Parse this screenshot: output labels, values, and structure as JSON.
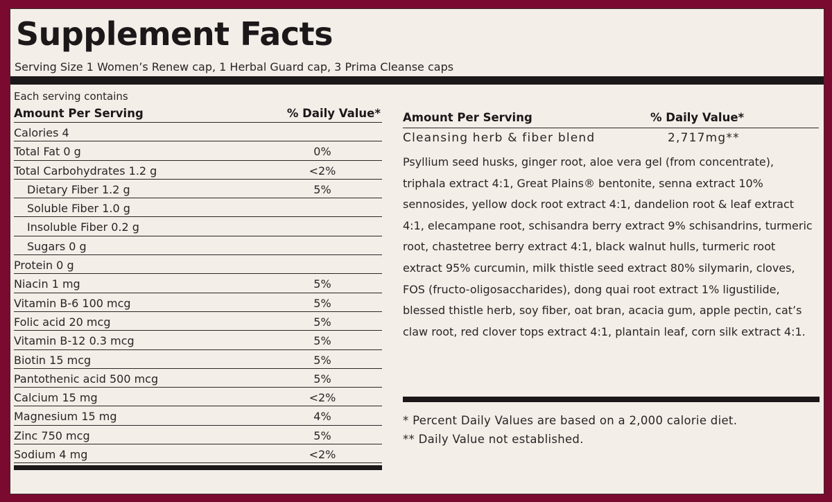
{
  "label": {
    "title": "Supplement Facts",
    "serving_size": "Serving Size 1 Women’s Renew cap, 1 Herbal Guard cap, 3 Prima Cleanse caps",
    "colors": {
      "frame": "#7a0a30",
      "panel": "#f3eee8",
      "ink": "#1c1718"
    }
  },
  "left_table": {
    "intro": "Each serving contains",
    "header": {
      "amount": "Amount Per Serving",
      "dv": "% Daily Value*"
    },
    "rows": [
      {
        "label": "Calories 4",
        "dv": "",
        "indent": false
      },
      {
        "label": "Total Fat 0 g",
        "dv": "0%",
        "indent": false
      },
      {
        "label": "Total Carbohydrates 1.2 g",
        "dv": "<2%",
        "indent": false
      },
      {
        "label": "Dietary Fiber 1.2 g",
        "dv": "5%",
        "indent": true
      },
      {
        "label": "Soluble Fiber 1.0 g",
        "dv": "",
        "indent": true
      },
      {
        "label": "Insoluble Fiber 0.2 g",
        "dv": "",
        "indent": true
      },
      {
        "label": "Sugars 0 g",
        "dv": "",
        "indent": true
      },
      {
        "label": "Protein 0 g",
        "dv": "",
        "indent": false
      },
      {
        "label": "Niacin 1 mg",
        "dv": "5%",
        "indent": false
      },
      {
        "label": "Vitamin B-6 100 mcg",
        "dv": "5%",
        "indent": false
      },
      {
        "label": "Folic acid 20 mcg",
        "dv": "5%",
        "indent": false
      },
      {
        "label": "Vitamin B-12 0.3 mcg",
        "dv": "5%",
        "indent": false
      },
      {
        "label": "Biotin 15 mcg",
        "dv": "5%",
        "indent": false
      },
      {
        "label": "Pantothenic acid 500 mcg",
        "dv": "5%",
        "indent": false
      },
      {
        "label": "Calcium 15 mg",
        "dv": "<2%",
        "indent": false
      },
      {
        "label": "Magnesium 15 mg",
        "dv": "4%",
        "indent": false
      },
      {
        "label": "Zinc 750 mcg",
        "dv": "5%",
        "indent": false
      },
      {
        "label": "Sodium 4 mg",
        "dv": "<2%",
        "indent": false
      }
    ]
  },
  "right_table": {
    "header": {
      "amount": "Amount Per Serving",
      "dv": "% Daily Value*"
    },
    "blend": {
      "name": "Cleansing herb & fiber blend",
      "amount": "2,717mg**"
    },
    "ingredients": "Psyllium seed husks, ginger root, aloe vera gel (from concentrate), triphala extract 4:1, Great Plains® bentonite, senna extract 10% sennosides, yellow dock root extract 4:1, dandelion root & leaf extract 4:1, elecampane root, schisandra berry extract 9% schisandrins, turmeric root, chastetree berry extract 4:1, black walnut hulls, turmeric root extract 95% curcumin, milk thistle seed extract 80% silymarin, cloves, FOS (fructo-oligosaccharides), dong quai root extract 1% ligustilide, blessed thistle herb, soy fiber, oat bran, acacia gum, apple pectin, cat’s claw root, red clover tops extract 4:1, plantain leaf, corn silk extract 4:1."
  },
  "footnotes": {
    "single": "* Percent Daily Values are based on a 2,000 calorie diet.",
    "double": "** Daily Value not established."
  }
}
